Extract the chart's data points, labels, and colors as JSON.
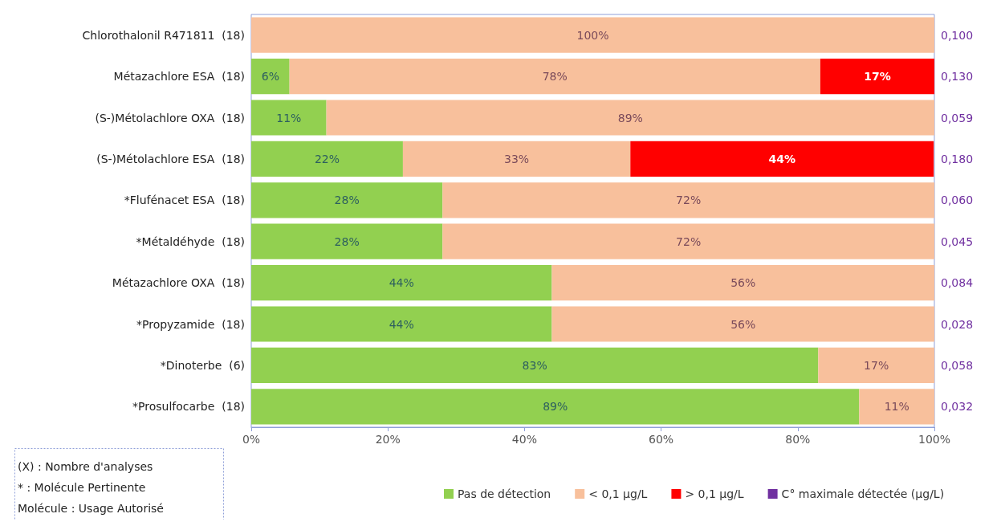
{
  "chart_data": {
    "type": "bar",
    "orientation": "horizontal",
    "stacked": true,
    "categories": [
      "Chlorothalonil R471811  (18)",
      "Métazachlore ESA  (18)",
      "(S-)Métolachlore OXA  (18)",
      "(S-)Métolachlore ESA  (18)",
      "*Flufénacet ESA  (18)",
      "*Métaldéhyde  (18)",
      "Métazachlore OXA  (18)",
      "*Propyzamide  (18)",
      "*Dinoterbe  (6)",
      "*Prosulfocarbe  (18)"
    ],
    "y2_categories": [
      "0,100",
      "0,130",
      "0,059",
      "0,180",
      "0,060",
      "0,045",
      "0,084",
      "0,028",
      "0,058",
      "0,032"
    ],
    "series": [
      {
        "name": "Pas de détection",
        "color": "#92d050",
        "values": [
          null,
          5.6,
          11,
          22.2,
          28,
          28,
          44,
          44,
          83,
          89
        ],
        "value_labels": [
          null,
          "6%",
          "11%",
          "22%",
          "28%",
          "28%",
          "44%",
          "44%",
          "83%",
          "89%"
        ]
      },
      {
        "name": "< 0,1 µg/L",
        "color": "#f8c09c",
        "values": [
          100,
          77.7,
          89,
          33.3,
          72,
          72,
          56,
          56,
          17,
          11
        ],
        "value_labels": [
          "100%",
          "78%",
          "89%",
          "33%",
          "72%",
          "72%",
          "56%",
          "56%",
          "17%",
          "11%"
        ]
      },
      {
        "name": "> 0,1 µg/L",
        "color": "#ff0000",
        "values": [
          null,
          16.7,
          null,
          44.4,
          null,
          null,
          null,
          null,
          null,
          null
        ],
        "value_labels": [
          null,
          "17%",
          null,
          "44%",
          null,
          null,
          null,
          null,
          null,
          null
        ]
      },
      {
        "name": "C° maximale détectée (µg/L)",
        "color": "#7030a0",
        "values": [
          null,
          null,
          null,
          null,
          null,
          null,
          null,
          null,
          null,
          null
        ]
      }
    ],
    "xlim": [
      0,
      100
    ],
    "xticks": [
      {
        "value": 0,
        "label": "0%"
      },
      {
        "value": 20,
        "label": "20%"
      },
      {
        "value": 40,
        "label": "40%"
      },
      {
        "value": 60,
        "label": "60%"
      },
      {
        "value": 80,
        "label": "80%"
      },
      {
        "value": 100,
        "label": "100%"
      }
    ],
    "legend": "bottom",
    "grid": false,
    "annotations": [
      "(X) : Nombre d'analyses",
      "* : Molécule Pertinente",
      "Molécule : Usage Autorisé"
    ]
  }
}
